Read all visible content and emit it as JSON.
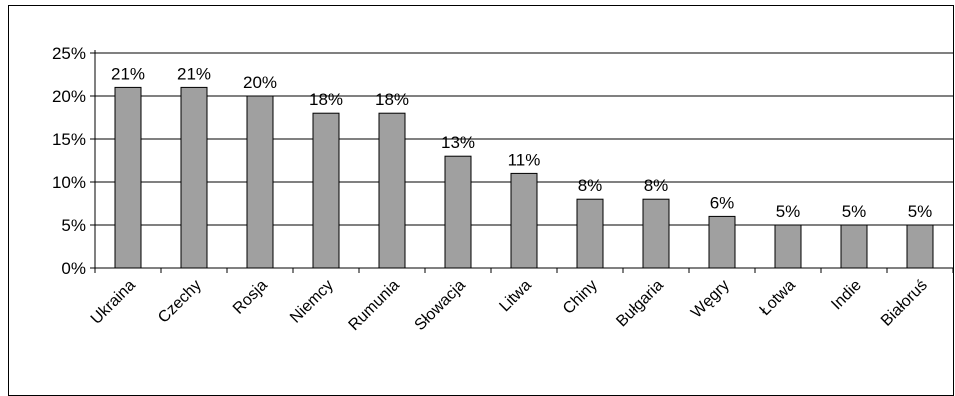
{
  "chart_data": {
    "type": "bar",
    "title": "",
    "xlabel": "",
    "ylabel": "",
    "categories": [
      "Ukraina",
      "Czechy",
      "Rosja",
      "Niemcy",
      "Rumunia",
      "Słowacja",
      "Litwa",
      "Chiny",
      "Bułgaria",
      "Węgry",
      "Łotwa",
      "Indie",
      "Białoruś"
    ],
    "values": [
      21,
      21,
      20,
      18,
      18,
      13,
      11,
      8,
      8,
      6,
      5,
      5,
      5
    ],
    "value_labels": [
      "21%",
      "21%",
      "20%",
      "18%",
      "18%",
      "13%",
      "11%",
      "8%",
      "8%",
      "6%",
      "5%",
      "5%",
      "5%"
    ],
    "ylim": [
      0,
      25
    ],
    "yticks": [
      0,
      5,
      10,
      15,
      20,
      25
    ],
    "ytick_labels": [
      "0%",
      "5%",
      "10%",
      "15%",
      "20%",
      "25%"
    ],
    "grid": true,
    "legend": "none",
    "colors": {
      "bar_fill": "#a0a0a0",
      "bar_stroke": "#000000",
      "grid": "#000000",
      "background": "#ffffff"
    }
  }
}
